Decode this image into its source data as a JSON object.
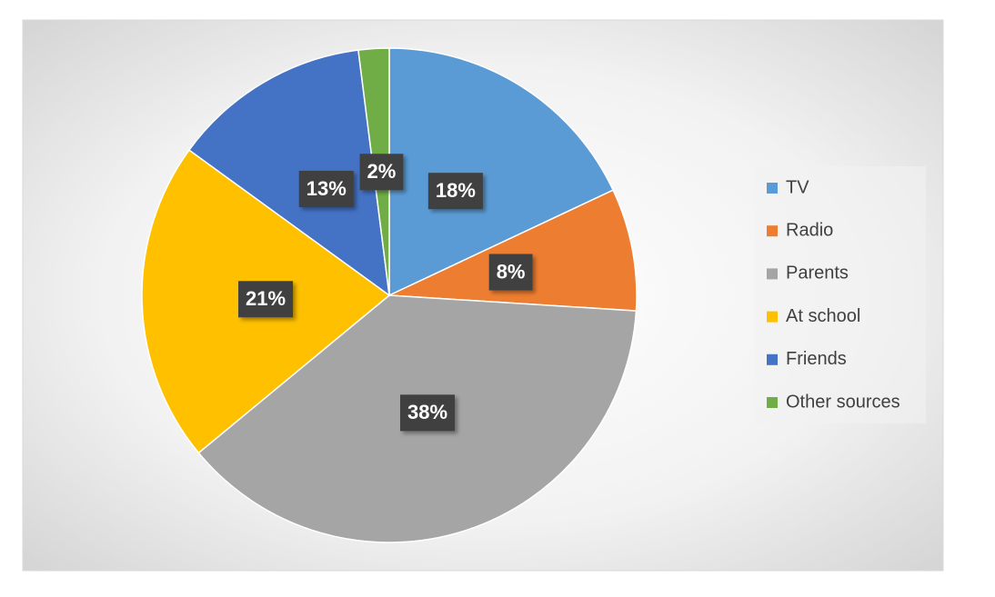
{
  "chart_data": {
    "type": "pie",
    "categories": [
      "TV",
      "Radio",
      "Parents",
      "At school",
      "Friends",
      "Other sources"
    ],
    "values": [
      18,
      8,
      38,
      21,
      13,
      2
    ],
    "value_labels": [
      "18%",
      "8%",
      "38%",
      "21%",
      "13%",
      "2%"
    ],
    "colors": [
      "#5b9bd5",
      "#ed7d31",
      "#a5a5a5",
      "#ffc000",
      "#4472c4",
      "#70ad47"
    ],
    "legend": "right"
  }
}
